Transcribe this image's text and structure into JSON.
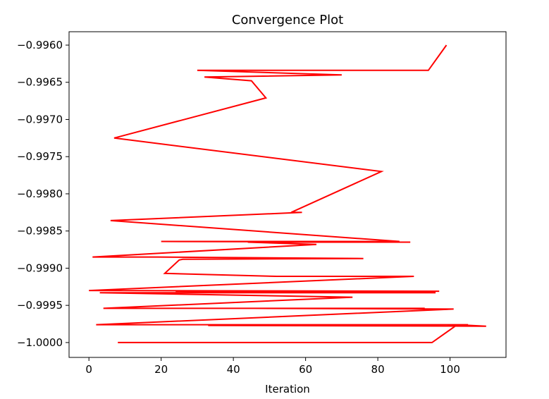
{
  "chart_data": {
    "type": "line",
    "title": "Convergence Plot",
    "xlabel": "Iteration",
    "ylabel": "",
    "xlim": [
      -5.5,
      115.5
    ],
    "ylim": [
      -1.0002,
      -0.99582
    ],
    "xticks": [
      0,
      20,
      40,
      60,
      80,
      100
    ],
    "xtick_labels": [
      "0",
      "20",
      "40",
      "60",
      "80",
      "100"
    ],
    "yticks": [
      -1.0,
      -0.9995,
      -0.999,
      -0.9985,
      -0.998,
      -0.9975,
      -0.997,
      -0.9965,
      -0.996
    ],
    "ytick_labels": [
      "−1.0000",
      "−0.9995",
      "−0.9990",
      "−0.9985",
      "−0.9980",
      "−0.9975",
      "−0.9970",
      "−0.9965",
      "−0.9960"
    ],
    "grid": false,
    "series": [
      {
        "color": "#ff0000",
        "x": [
          99,
          94,
          30,
          70,
          32,
          45,
          49,
          7,
          81,
          56,
          59,
          6,
          86,
          20,
          89,
          44,
          63,
          1,
          19,
          76,
          26,
          25,
          21,
          52,
          90,
          0,
          97,
          24,
          96,
          3,
          73,
          4,
          93,
          46,
          101,
          2,
          105,
          33,
          110,
          102,
          95,
          8,
          69,
          75
        ],
        "y": [
          -0.996,
          -0.99634,
          -0.99634,
          -0.9964,
          -0.99643,
          -0.99648,
          -0.99671,
          -0.99725,
          -0.9977,
          -0.99825,
          -0.99825,
          -0.99836,
          -0.99864,
          -0.99864,
          -0.99865,
          -0.99865,
          -0.99868,
          -0.99885,
          -0.99885,
          -0.99887,
          -0.99888,
          -0.99889,
          -0.99907,
          -0.99911,
          -0.99911,
          -0.9993,
          -0.99931,
          -0.99931,
          -0.99933,
          -0.99933,
          -0.99939,
          -0.99954,
          -0.99954,
          -0.99954,
          -0.99955,
          -0.99976,
          -0.99976,
          -0.99977,
          -0.99978,
          -0.99976,
          -1.0,
          -1.0,
          -1.0,
          -1.0
        ]
      }
    ]
  }
}
